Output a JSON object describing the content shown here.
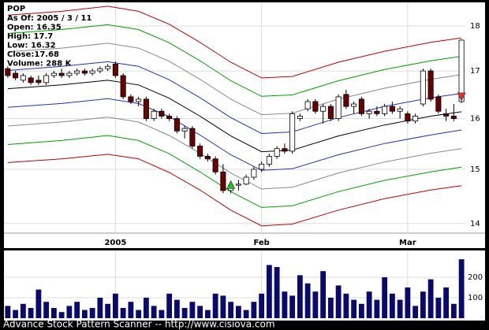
{
  "chart_data": {
    "type": "candlestick",
    "title": "POP",
    "info": [
      "As Of: 2005 / 3 / 11",
      "Open: 16.35",
      "High: 17.7",
      "Low: 16.32",
      "Close:17.68",
      "Volume: 288 K"
    ],
    "footer": "Advance Stock Pattern Scanner -- http://www.cisiova.com",
    "categories": [
      null,
      null,
      null,
      null,
      null,
      null,
      null,
      null,
      null,
      null,
      null,
      null,
      null,
      null,
      "2005",
      null,
      null,
      null,
      null,
      null,
      null,
      null,
      null,
      null,
      null,
      null,
      null,
      null,
      null,
      null,
      null,
      null,
      null,
      "Feb",
      null,
      null,
      null,
      null,
      null,
      null,
      null,
      null,
      null,
      null,
      null,
      null,
      null,
      null,
      null,
      null,
      null,
      null,
      "Mar",
      null,
      null,
      null,
      null,
      null,
      null,
      null
    ],
    "open": [
      17.05,
      16.95,
      16.8,
      16.85,
      16.8,
      16.75,
      16.9,
      16.95,
      16.9,
      16.95,
      17.0,
      16.95,
      17.0,
      17.05,
      17.15,
      16.9,
      16.45,
      16.35,
      16.4,
      16.0,
      16.15,
      16.05,
      16.0,
      15.75,
      15.8,
      15.45,
      15.25,
      15.2,
      14.95,
      14.6,
      14.7,
      14.72,
      14.85,
      15.0,
      15.1,
      15.25,
      15.4,
      15.35,
      16.0,
      16.2,
      16.35,
      16.15,
      16.25,
      16.0,
      16.5,
      16.25,
      16.4,
      16.1,
      16.15,
      16.1,
      16.25,
      16.15,
      16.1,
      15.95,
      16.3,
      17.0,
      16.45,
      16.1,
      16.05,
      16.35
    ],
    "high": [
      17.1,
      17.0,
      16.95,
      16.9,
      16.9,
      16.95,
      17.0,
      17.05,
      17.0,
      17.05,
      17.05,
      17.05,
      17.1,
      17.15,
      17.2,
      16.95,
      16.5,
      16.45,
      16.45,
      16.2,
      16.2,
      16.1,
      16.05,
      15.85,
      15.85,
      15.5,
      15.3,
      15.25,
      15.1,
      14.75,
      14.8,
      14.9,
      15.05,
      15.15,
      15.3,
      15.45,
      15.5,
      16.15,
      16.1,
      16.4,
      16.4,
      16.3,
      16.3,
      16.5,
      16.6,
      16.35,
      16.45,
      16.2,
      16.25,
      16.3,
      16.35,
      16.25,
      16.15,
      16.1,
      17.05,
      17.05,
      16.5,
      16.2,
      16.3,
      17.7
    ],
    "low": [
      16.85,
      16.8,
      16.75,
      16.7,
      16.7,
      16.7,
      16.85,
      16.85,
      16.85,
      16.9,
      16.9,
      16.9,
      16.95,
      17.0,
      16.85,
      16.4,
      16.3,
      16.25,
      15.95,
      15.95,
      16.0,
      15.95,
      15.7,
      15.6,
      15.4,
      15.2,
      15.15,
      14.9,
      14.55,
      14.55,
      14.6,
      14.7,
      14.8,
      14.95,
      15.05,
      15.2,
      15.3,
      15.3,
      15.95,
      16.15,
      16.1,
      15.9,
      15.95,
      15.95,
      16.2,
      16.1,
      16.05,
      16.0,
      16.05,
      16.05,
      16.1,
      16.0,
      15.9,
      15.9,
      16.25,
      16.35,
      16.1,
      15.95,
      15.95,
      16.32
    ],
    "close": [
      16.9,
      16.85,
      16.9,
      16.75,
      16.75,
      16.9,
      16.95,
      16.9,
      16.95,
      17.0,
      16.95,
      17.0,
      17.05,
      17.1,
      16.9,
      16.45,
      16.35,
      16.4,
      16.0,
      16.15,
      16.05,
      16.0,
      15.75,
      15.8,
      15.45,
      15.25,
      15.2,
      14.95,
      14.6,
      14.7,
      14.72,
      14.85,
      15.0,
      15.1,
      15.25,
      15.4,
      15.35,
      16.1,
      16.05,
      16.35,
      16.15,
      16.25,
      16.0,
      16.45,
      16.25,
      16.3,
      16.1,
      16.15,
      16.1,
      16.25,
      16.15,
      16.2,
      15.95,
      16.05,
      17.0,
      16.4,
      16.15,
      16.05,
      16.0,
      17.68
    ],
    "up_color": "#ffffff",
    "down_color": "#6b0000",
    "xlim": [
      -0.5,
      59.5
    ],
    "ylim": [
      13.83,
      18.55
    ],
    "log": true,
    "grid": true,
    "yticks": [
      14,
      15,
      16,
      17,
      18
    ],
    "bands": [
      {
        "color": "#c00000",
        "x": [
          0,
          7,
          13,
          17,
          21,
          25,
          29,
          33,
          37,
          43,
          49,
          55,
          59
        ],
        "values": [
          18.25,
          18.34,
          18.46,
          18.34,
          18.04,
          17.63,
          17.19,
          16.85,
          16.88,
          17.19,
          17.43,
          17.63,
          17.73
        ]
      },
      {
        "color": "#00a000",
        "x": [
          0,
          7,
          13,
          17,
          21,
          25,
          29,
          33,
          37,
          43,
          49,
          55,
          59
        ],
        "values": [
          17.83,
          17.92,
          18.03,
          17.92,
          17.62,
          17.22,
          16.79,
          16.46,
          16.49,
          16.79,
          17.03,
          17.22,
          17.32
        ]
      },
      {
        "color": "#888888",
        "x": [
          0,
          7,
          13,
          17,
          21,
          25,
          29,
          33,
          37,
          43,
          49,
          55,
          59
        ],
        "values": [
          17.42,
          17.5,
          17.61,
          17.5,
          17.21,
          16.82,
          16.4,
          16.08,
          16.11,
          16.4,
          16.63,
          16.82,
          16.92
        ]
      },
      {
        "color": "#2030c0",
        "x": [
          0,
          7,
          13,
          17,
          21,
          25,
          29,
          33,
          37,
          43,
          49,
          55,
          59
        ],
        "values": [
          17.01,
          17.1,
          17.2,
          17.1,
          16.81,
          16.43,
          16.02,
          15.7,
          15.73,
          16.02,
          16.25,
          16.43,
          16.52
        ]
      },
      {
        "color": "#000000",
        "x": [
          0,
          7,
          13,
          17,
          21,
          25,
          29,
          33,
          37,
          43,
          49,
          55,
          59
        ],
        "values": [
          16.62,
          16.7,
          16.8,
          16.7,
          16.42,
          16.05,
          15.65,
          15.34,
          15.37,
          15.65,
          15.87,
          16.05,
          16.14
        ]
      },
      {
        "color": "#2030c0",
        "x": [
          0,
          7,
          13,
          17,
          21,
          25,
          29,
          33,
          37,
          43,
          49,
          55,
          59
        ],
        "values": [
          16.23,
          16.31,
          16.41,
          16.31,
          16.04,
          15.67,
          15.28,
          14.98,
          15.01,
          15.28,
          15.5,
          15.67,
          15.77
        ]
      },
      {
        "color": "#888888",
        "x": [
          0,
          7,
          13,
          17,
          21,
          25,
          29,
          33,
          37,
          43,
          49,
          55,
          59
        ],
        "values": [
          15.85,
          15.93,
          16.03,
          15.93,
          15.66,
          15.31,
          14.93,
          14.63,
          14.66,
          14.93,
          15.14,
          15.31,
          15.4
        ]
      },
      {
        "color": "#00a000",
        "x": [
          0,
          7,
          13,
          17,
          21,
          25,
          29,
          33,
          37,
          43,
          49,
          55,
          59
        ],
        "values": [
          15.48,
          15.56,
          15.66,
          15.56,
          15.3,
          14.95,
          14.58,
          14.29,
          14.32,
          14.58,
          14.79,
          14.95,
          15.04
        ]
      },
      {
        "color": "#c00000",
        "x": [
          0,
          7,
          13,
          17,
          21,
          25,
          29,
          33,
          37,
          43,
          49,
          55,
          59
        ],
        "values": [
          15.13,
          15.2,
          15.29,
          15.2,
          14.94,
          14.61,
          14.24,
          13.96,
          13.99,
          14.24,
          14.45,
          14.61,
          14.69
        ]
      }
    ],
    "markers": [
      {
        "index": 29,
        "price": 14.71,
        "color": "#22c022",
        "direction": "up"
      },
      {
        "index": 59,
        "price": 16.45,
        "color": "#e03030",
        "direction": "down"
      }
    ],
    "volume": {
      "color": "#0a0a6e",
      "ylim": [
        0,
        331000
      ],
      "yticks": [
        {
          "value": 100000,
          "label": "100 K"
        },
        {
          "value": 200000,
          "label": "200 K"
        }
      ],
      "values": [
        60000,
        40000,
        70000,
        50000,
        140000,
        80000,
        50000,
        30000,
        60000,
        80000,
        40000,
        50000,
        100000,
        70000,
        120000,
        50000,
        80000,
        40000,
        100000,
        60000,
        40000,
        120000,
        90000,
        50000,
        80000,
        60000,
        40000,
        120000,
        110000,
        80000,
        60000,
        40000,
        80000,
        120000,
        260000,
        250000,
        130000,
        110000,
        210000,
        170000,
        130000,
        230000,
        100000,
        160000,
        120000,
        90000,
        70000,
        130000,
        90000,
        200000,
        120000,
        90000,
        150000,
        60000,
        130000,
        190000,
        100000,
        150000,
        70000,
        288000
      ]
    }
  }
}
